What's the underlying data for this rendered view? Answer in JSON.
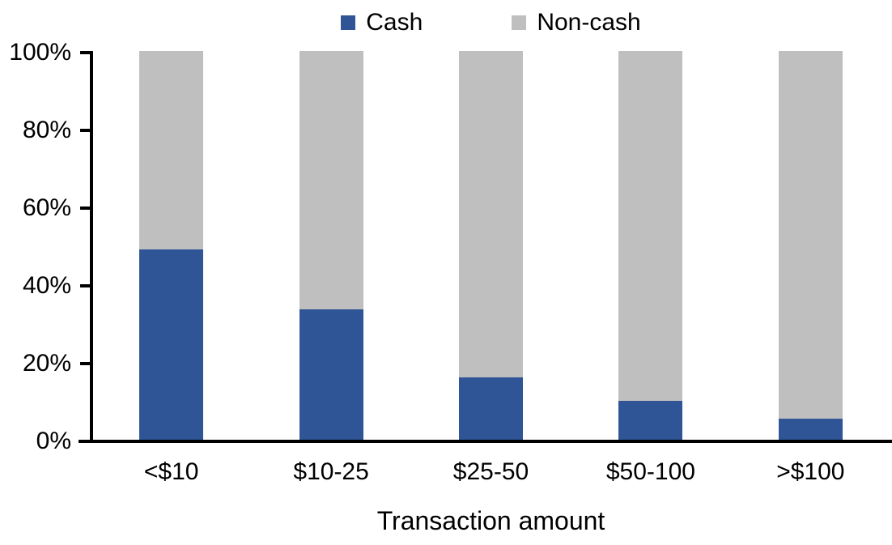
{
  "chart_data": {
    "type": "bar",
    "stacked": true,
    "title": "",
    "xlabel": "Transaction amount",
    "ylabel": "",
    "categories": [
      "<$10",
      "$10-25",
      "$25-50",
      "$50-100",
      ">$100"
    ],
    "series": [
      {
        "name": "Cash",
        "color": "#2F5597",
        "values": [
          49,
          33.5,
          16,
          10,
          5.5
        ]
      },
      {
        "name": "Non-cash",
        "color": "#BFBFBF",
        "values": [
          51,
          66.5,
          84,
          90,
          94.5
        ]
      }
    ],
    "ylim": [
      0,
      100
    ],
    "ytick_step": 20,
    "ytick_labels": [
      "0%",
      "20%",
      "40%",
      "60%",
      "80%",
      "100%"
    ],
    "grid": false,
    "legend_position": "top-center",
    "axis_color": "#000000",
    "background": "#FFFFFF"
  }
}
